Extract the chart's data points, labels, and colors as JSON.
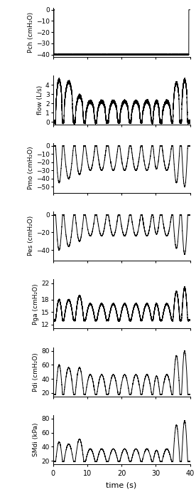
{
  "panels": [
    {
      "ylabel": "Pch (cmH₂O)",
      "ylim": [
        -42,
        2
      ],
      "yticks": [
        0,
        -10,
        -20,
        -30,
        -40
      ],
      "signal": "pch"
    },
    {
      "ylabel": "flow (L/s)",
      "ylim": [
        -0.3,
        5
      ],
      "yticks": [
        0,
        1,
        2,
        3,
        4
      ],
      "signal": "flow"
    },
    {
      "ylabel": "Pmo (cmH₂O)",
      "ylim": [
        -57,
        3
      ],
      "yticks": [
        0,
        -10,
        -20,
        -30,
        -40,
        -50
      ],
      "signal": "pmo"
    },
    {
      "ylabel": "Pes (cmH₂O)",
      "ylim": [
        -52,
        4
      ],
      "yticks": [
        0,
        -20,
        -40
      ],
      "signal": "pes"
    },
    {
      "ylabel": "Pga (cmH₂O)",
      "ylim": [
        11,
        23
      ],
      "yticks": [
        12,
        15,
        18,
        22
      ],
      "signal": "pga"
    },
    {
      "ylabel": "Pdi (cmH₂O)",
      "ylim": [
        15,
        85
      ],
      "yticks": [
        20,
        40,
        60,
        80
      ],
      "signal": "pdi"
    },
    {
      "ylabel": "SMdi (kPa)",
      "ylim": [
        15,
        85
      ],
      "yticks": [
        20,
        40,
        60,
        80
      ],
      "signal": "smdi"
    }
  ],
  "xlim": [
    0,
    40
  ],
  "xticks": [
    0,
    10,
    20,
    30,
    40
  ],
  "xlabel": "time (s)",
  "background_color": "#ffffff",
  "line_color": "#000000",
  "linewidth": 0.7
}
